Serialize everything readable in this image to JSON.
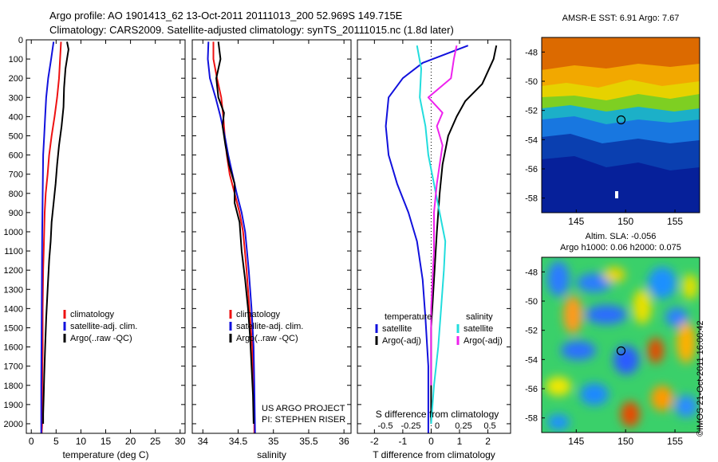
{
  "header": {
    "line1": "Argo profile: AO 1901413_62 13-Oct-2011 20111013_200 52.969S 149.715E",
    "line2": "Climatology: CARS2009. Satellite-adjusted climatology: synTS_20111015.nc (1.8d later)"
  },
  "credits": {
    "project": "US ARGO PROJECT",
    "pi": "PI: STEPHEN RISER",
    "copyright": "©IMOS 21-Oct-2011 16:00:42"
  },
  "colors": {
    "climatology": "#ee1111",
    "satellite": "#1111dd",
    "argo": "#000000",
    "cyan": "#22dddd",
    "magenta": "#ee22ee"
  },
  "chart_data": [
    {
      "type": "line",
      "name": "temperature-profile",
      "xlabel": "temperature (deg C)",
      "ylabel": "",
      "xlim": [
        -1,
        31
      ],
      "ylim": [
        2050,
        0
      ],
      "xticks": [
        0,
        5,
        10,
        15,
        20,
        25,
        30
      ],
      "yticks": [
        0,
        100,
        200,
        300,
        400,
        500,
        600,
        700,
        800,
        900,
        1000,
        1100,
        1200,
        1300,
        1400,
        1500,
        1600,
        1700,
        1800,
        1900,
        2000
      ],
      "legend": [
        "climatology",
        "satellite-adj. clim.",
        "Argo(..raw -QC)"
      ],
      "series": [
        {
          "name": "climatology",
          "color": "#ee1111",
          "x": [
            6.0,
            5.8,
            5.6,
            5.2,
            4.7,
            4.1,
            3.6,
            3.3,
            2.9,
            2.7,
            2.6,
            2.5,
            2.4,
            2.3,
            2.3,
            2.2,
            2.2,
            2.2,
            2.1
          ],
          "y": [
            10,
            100,
            200,
            300,
            400,
            500,
            600,
            700,
            800,
            900,
            1000,
            1100,
            1200,
            1400,
            1600,
            1800,
            1900,
            2000,
            2050
          ]
        },
        {
          "name": "satellite-adj. clim.",
          "color": "#1111dd",
          "x": [
            4.5,
            4.0,
            3.4,
            3.0,
            2.8,
            2.6,
            2.4,
            2.3,
            2.2,
            2.1,
            2.0,
            2.0,
            2.0
          ],
          "y": [
            10,
            100,
            200,
            300,
            400,
            500,
            600,
            800,
            1000,
            1400,
            1800,
            2000,
            2050
          ]
        },
        {
          "name": "Argo(..raw -QC)",
          "color": "#000000",
          "x": [
            7.2,
            7.5,
            6.9,
            6.6,
            6.5,
            6.1,
            5.6,
            5.2,
            4.9,
            4.5,
            4.1,
            3.9,
            3.6,
            3.3,
            3.0,
            2.8,
            2.6,
            2.5,
            2.4,
            2.4
          ],
          "y": [
            10,
            50,
            150,
            250,
            350,
            450,
            550,
            650,
            750,
            850,
            950,
            1050,
            1150,
            1300,
            1450,
            1600,
            1750,
            1850,
            1950,
            2000
          ]
        }
      ]
    },
    {
      "type": "line",
      "name": "salinity-profile",
      "xlabel": "salinity",
      "xlim": [
        33.85,
        36.1
      ],
      "ylim": [
        2050,
        0
      ],
      "xticks": [
        34,
        34.5,
        35,
        35.5,
        36
      ],
      "xticklabels": [
        "34",
        "34.5",
        "35",
        "35.5",
        "36"
      ],
      "legend": [
        "climatology",
        "satellite-adj. clim.",
        "Argo(..raw -QC)"
      ],
      "series": [
        {
          "name": "climatology",
          "color": "#ee1111",
          "x": [
            34.15,
            34.15,
            34.2,
            34.26,
            34.29,
            34.31,
            34.34,
            34.38,
            34.45,
            34.52,
            34.57,
            34.62,
            34.66,
            34.7,
            34.71,
            34.73,
            34.73
          ],
          "y": [
            10,
            100,
            200,
            300,
            400,
            500,
            600,
            700,
            800,
            900,
            1000,
            1200,
            1400,
            1600,
            1800,
            2000,
            2050
          ]
        },
        {
          "name": "satellite-adj. clim.",
          "color": "#1111dd",
          "x": [
            34.08,
            34.07,
            34.1,
            34.18,
            34.25,
            34.31,
            34.36,
            34.42,
            34.48,
            34.55,
            34.6,
            34.65,
            34.69,
            34.72,
            34.73,
            34.74
          ],
          "y": [
            10,
            100,
            200,
            300,
            400,
            500,
            600,
            700,
            800,
            900,
            1000,
            1200,
            1400,
            1600,
            1800,
            2050
          ]
        },
        {
          "name": "Argo(..raw -QC)",
          "color": "#000000",
          "x": [
            34.22,
            34.25,
            34.19,
            34.22,
            34.3,
            34.28,
            34.32,
            34.37,
            34.45,
            34.45,
            34.52,
            34.55,
            34.6,
            34.64,
            34.67,
            34.69,
            34.71,
            34.72
          ],
          "y": [
            10,
            100,
            200,
            300,
            380,
            450,
            550,
            650,
            750,
            850,
            950,
            1100,
            1250,
            1400,
            1550,
            1700,
            1850,
            2000
          ]
        }
      ]
    },
    {
      "type": "line",
      "name": "difference-from-climatology",
      "xlabel": "T difference from climatology",
      "xlabel2": "S difference from climatology",
      "xlim": [
        -2.6,
        2.8
      ],
      "ylim": [
        2050,
        0
      ],
      "xticks": [
        -2,
        -1,
        0,
        1,
        2
      ],
      "sticks": [
        "-0.5",
        "-0.25",
        "0",
        "0.25",
        "0.5"
      ],
      "legend_headers": [
        "temperature",
        "salinity"
      ],
      "legend": [
        "satellite",
        "Argo(-adj)",
        "satellite",
        "Argo(-adj)"
      ],
      "series": [
        {
          "name": "satellite",
          "quantity": "temperature",
          "color": "#1111dd",
          "x": [
            1.3,
            -0.3,
            -1.0,
            -1.5,
            -1.6,
            -1.5,
            -1.2,
            -0.8,
            -0.5,
            -0.3,
            -0.2,
            -0.1,
            -0.1,
            -0.1
          ],
          "y": [
            30,
            120,
            200,
            300,
            450,
            600,
            750,
            900,
            1050,
            1250,
            1450,
            1700,
            1900,
            2050
          ]
        },
        {
          "name": "Argo(-adj)",
          "quantity": "temperature",
          "color": "#000000",
          "x": [
            2.3,
            2.2,
            1.8,
            1.2,
            0.9,
            0.6,
            0.4,
            0.3,
            0.2,
            0.1,
            0.0,
            0.0,
            0.0
          ],
          "y": [
            30,
            100,
            230,
            320,
            400,
            500,
            650,
            800,
            1000,
            1250,
            1500,
            1800,
            2000
          ]
        },
        {
          "name": "satellite",
          "quantity": "salinity",
          "color": "#22dddd",
          "x": [
            -0.5,
            -0.35,
            -0.4,
            -0.2,
            -0.1,
            0.1,
            0.3,
            0.5,
            0.45,
            0.35,
            0.25,
            0.1,
            0.0
          ],
          "y": [
            30,
            150,
            300,
            450,
            600,
            750,
            900,
            1050,
            1200,
            1400,
            1600,
            1800,
            2000
          ]
        },
        {
          "name": "Argo(-adj)",
          "quantity": "salinity",
          "color": "#ee22ee",
          "x": [
            0.9,
            0.8,
            0.7,
            -0.1,
            0.4,
            0.2,
            0.4,
            0.3,
            0.2,
            0.1,
            0.1,
            0.0,
            0.0
          ],
          "y": [
            30,
            100,
            200,
            300,
            380,
            450,
            550,
            650,
            750,
            900,
            1100,
            1400,
            1800
          ]
        }
      ]
    },
    {
      "type": "heatmap",
      "name": "sst-map",
      "title": "AMSR-E SST: 6.91 Argo: 7.67",
      "xticks": [
        145,
        150,
        155
      ],
      "yticks": [
        -48,
        -50,
        -52,
        -54,
        -56,
        -58
      ],
      "xlim": [
        141.5,
        157.5
      ],
      "ylim": [
        -59,
        -47
      ],
      "marker": {
        "lon": 149.7,
        "lat": -52.97
      }
    },
    {
      "type": "heatmap",
      "name": "sla-map",
      "title": "Altim. SLA: -0.056",
      "subtitle": "Argo h1000: 0.06 h2000: 0.075",
      "xticks": [
        145,
        150,
        155
      ],
      "yticks": [
        -48,
        -50,
        -52,
        -54,
        -56,
        -58
      ],
      "xlim": [
        141.5,
        157.5
      ],
      "ylim": [
        -59,
        -47
      ],
      "marker": {
        "lon": 149.7,
        "lat": -52.97
      }
    }
  ]
}
